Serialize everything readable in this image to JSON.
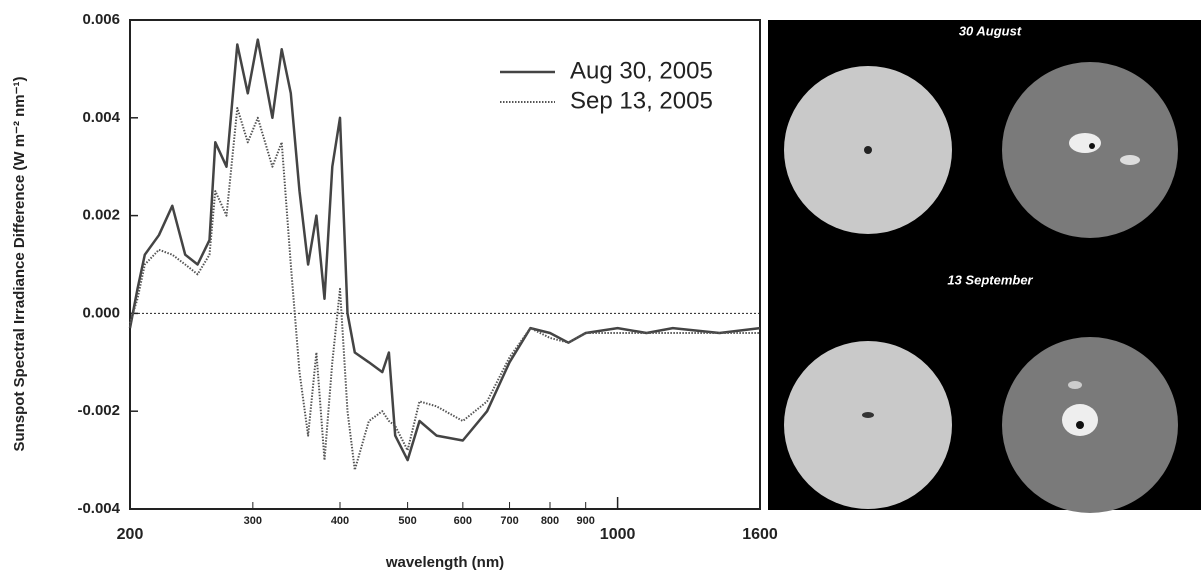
{
  "chart_data": {
    "type": "line",
    "xlabel": "wavelength (nm)",
    "ylabel": "Sunspot Spectral Irradiance Difference (W m⁻² nm⁻¹)",
    "xscale": "log",
    "xlim": [
      200,
      1600
    ],
    "xticks": [
      200,
      1000,
      1600
    ],
    "xticks_minor": [
      300,
      400,
      500,
      600,
      700,
      800,
      900
    ],
    "ylim": [
      -0.004,
      0.006
    ],
    "yticks": [
      0.006,
      0.004,
      0.002,
      {
        "value": 0,
        "label": "0.000"
      },
      -0.002,
      -0.004
    ],
    "reference_line": 0,
    "legend": "upper right",
    "x": [
      200,
      205,
      210,
      220,
      230,
      240,
      250,
      260,
      265,
      275,
      285,
      295,
      305,
      320,
      330,
      340,
      350,
      360,
      370,
      380,
      390,
      400,
      410,
      420,
      440,
      460,
      470,
      480,
      500,
      520,
      550,
      600,
      650,
      700,
      750,
      800,
      850,
      900,
      1000,
      1100,
      1200,
      1400,
      1600
    ],
    "series": [
      {
        "name": "Aug 30, 2005",
        "color": "#444444",
        "dash": "solid",
        "values": [
          -0.0003,
          0.0005,
          0.0012,
          0.0016,
          0.0022,
          0.0012,
          0.001,
          0.0015,
          0.0035,
          0.003,
          0.0055,
          0.0045,
          0.0056,
          0.004,
          0.0054,
          0.0045,
          0.0025,
          0.001,
          0.002,
          0.0003,
          0.003,
          0.004,
          0.0,
          -0.0008,
          -0.001,
          -0.0012,
          -0.0008,
          -0.0025,
          -0.003,
          -0.0022,
          -0.0025,
          -0.0026,
          -0.002,
          -0.001,
          -0.0003,
          -0.0004,
          -0.0006,
          -0.0004,
          -0.0003,
          -0.0004,
          -0.0003,
          -0.0004,
          -0.0003
        ]
      },
      {
        "name": "Sep 13, 2005",
        "color": "#555555",
        "dash": "dotted",
        "values": [
          -0.0002,
          0.0003,
          0.001,
          0.0013,
          0.0012,
          0.001,
          0.0008,
          0.0012,
          0.0025,
          0.002,
          0.0042,
          0.0035,
          0.004,
          0.003,
          0.0035,
          0.001,
          -0.0012,
          -0.0025,
          -0.0008,
          -0.003,
          -0.001,
          0.0005,
          -0.002,
          -0.0032,
          -0.0022,
          -0.002,
          -0.0022,
          -0.0023,
          -0.0028,
          -0.0018,
          -0.0019,
          -0.0022,
          -0.0018,
          -0.0009,
          -0.0003,
          -0.0005,
          -0.0006,
          -0.0004,
          -0.0004,
          -0.0004,
          -0.0004,
          -0.0004,
          -0.0004
        ]
      }
    ]
  },
  "image_panel": {
    "captions": [
      "30 August",
      "13 September"
    ]
  }
}
